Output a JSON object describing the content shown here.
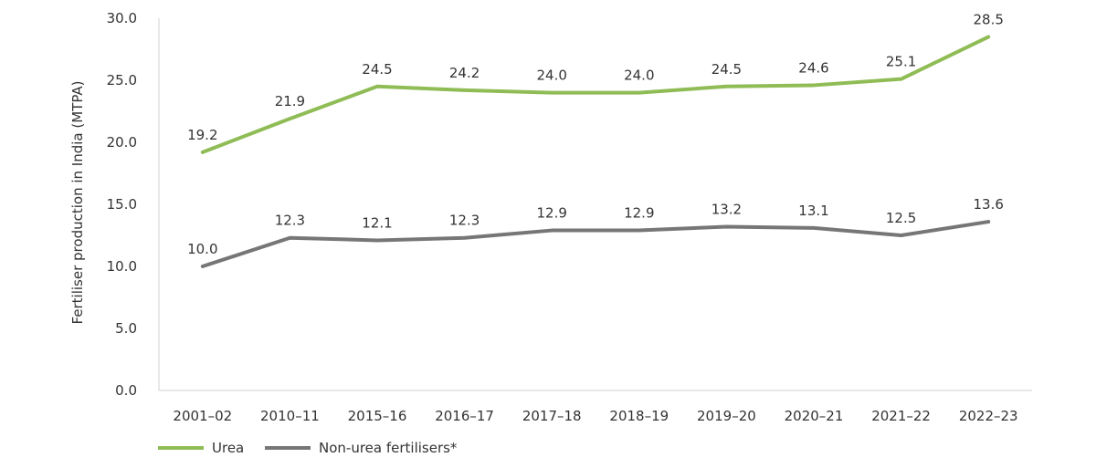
{
  "chart_data": {
    "type": "line",
    "ylabel": "Fertiliser production in India (MTPA)",
    "ylim": [
      0,
      30
    ],
    "yticks": [
      "0.0",
      "5.0",
      "10.0",
      "15.0",
      "20.0",
      "25.0",
      "30.0"
    ],
    "categories": [
      "2001–02",
      "2010–11",
      "2015–16",
      "2016–17",
      "2017–18",
      "2018–19",
      "2019–20",
      "2020–21",
      "2021–22",
      "2022–23"
    ],
    "series": [
      {
        "name": "Urea",
        "color": "#8fbc55",
        "values": [
          19.2,
          21.9,
          24.5,
          24.2,
          24.0,
          24.0,
          24.5,
          24.6,
          25.1,
          28.5
        ],
        "labels": [
          "19.2",
          "21.9",
          "24.5",
          "24.2",
          "24.0",
          "24.0",
          "24.5",
          "24.6",
          "25.1",
          "28.5"
        ]
      },
      {
        "name": "Non-urea fertilisers*",
        "color": "#767676",
        "values": [
          10.0,
          12.3,
          12.1,
          12.3,
          12.9,
          12.9,
          13.2,
          13.1,
          12.5,
          13.6
        ],
        "labels": [
          "10.0",
          "12.3",
          "12.1",
          "12.3",
          "12.9",
          "12.9",
          "13.2",
          "13.1",
          "12.5",
          "13.6"
        ]
      }
    ],
    "grid": false,
    "legend_position": "bottom-left"
  }
}
